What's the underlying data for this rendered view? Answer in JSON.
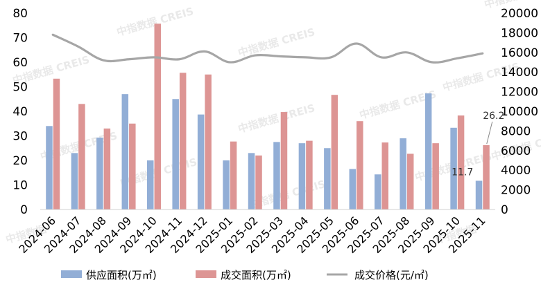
{
  "watermark": "中指数据 CREIS",
  "watermark_short": "中指数据",
  "chart_data": {
    "type": "bar",
    "categories": [
      "2024-06",
      "2024-07",
      "2024-08",
      "2024-09",
      "2024-10",
      "2024-11",
      "2024-12",
      "2025-01",
      "2025-02",
      "2025-03",
      "2025-04",
      "2025-05",
      "2025-06",
      "2025-07",
      "2025-08",
      "2025-09",
      "2025-10",
      "2025-11"
    ],
    "series": [
      {
        "name": "供应面积(万㎡)",
        "type": "bar",
        "axis": "left",
        "color": "#92aed6",
        "values": [
          34,
          23,
          29.3,
          47,
          20,
          45,
          38.7,
          20,
          23,
          27.5,
          27,
          25,
          16.5,
          14.3,
          29,
          47.3,
          33.3,
          11.7
        ]
      },
      {
        "name": "成交面积(万㎡)",
        "type": "bar",
        "axis": "left",
        "color": "#dd9594",
        "values": [
          53.3,
          43,
          33,
          35,
          75.7,
          55.7,
          55,
          27.7,
          22,
          39.7,
          28,
          46.7,
          36,
          27.3,
          22.7,
          27,
          38.3,
          26.2
        ]
      },
      {
        "name": "成交价格(元/㎡)",
        "type": "line",
        "axis": "right",
        "color": "#a6a6a6",
        "values": [
          17800,
          16600,
          15200,
          15300,
          15500,
          15300,
          16100,
          15000,
          15700,
          15600,
          15500,
          15500,
          16900,
          15500,
          16000,
          15000,
          15400,
          15900
        ]
      }
    ],
    "left_axis": {
      "min": 0,
      "max": 80,
      "ticks": [
        0,
        10,
        20,
        30,
        40,
        50,
        60,
        70,
        80
      ]
    },
    "right_axis": {
      "min": 0,
      "max": 20000,
      "ticks": [
        0,
        2000,
        4000,
        6000,
        8000,
        10000,
        12000,
        14000,
        16000,
        18000,
        20000
      ]
    },
    "data_labels": [
      {
        "category": "2025-11",
        "series": "供应面积(万㎡)",
        "text": "11.7"
      },
      {
        "category": "2025-11",
        "series": "成交面积(万㎡)",
        "text": "26.2"
      }
    ],
    "legend_position": "bottom",
    "grid": false
  }
}
